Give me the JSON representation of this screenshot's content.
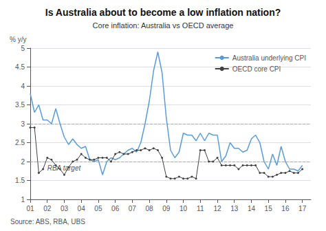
{
  "chart_data": {
    "type": "line",
    "title": "Is Australia about to become a low inflation nation?",
    "subtitle": "Core inflation: Australia vs OECD average",
    "y_label": "% y/y",
    "source": "Source: ABS, RBA, UBS",
    "annotations": [
      {
        "text": "RBA target",
        "x": 2002.0,
        "y": 1.83
      }
    ],
    "reference_lines": {
      "values": [
        2.0,
        3.0
      ],
      "color": "#aaaaaa",
      "line_style": "dashed"
    },
    "x": [
      2001,
      2001.25,
      2001.5,
      2001.75,
      2002,
      2002.25,
      2002.5,
      2002.75,
      2003,
      2003.25,
      2003.5,
      2003.75,
      2004,
      2004.25,
      2004.5,
      2004.75,
      2005,
      2005.25,
      2005.5,
      2005.75,
      2006,
      2006.25,
      2006.5,
      2006.75,
      2007,
      2007.25,
      2007.5,
      2007.75,
      2008,
      2008.25,
      2008.5,
      2008.75,
      2009,
      2009.25,
      2009.5,
      2009.75,
      2010,
      2010.25,
      2010.5,
      2010.75,
      2011,
      2011.25,
      2011.5,
      2011.75,
      2012,
      2012.25,
      2012.5,
      2012.75,
      2013,
      2013.25,
      2013.5,
      2013.75,
      2014,
      2014.25,
      2014.5,
      2014.75,
      2015,
      2015.25,
      2015.5,
      2015.75,
      2016,
      2016.25,
      2016.5,
      2016.75,
      2017
    ],
    "series": [
      {
        "name": "Australia underlying CPI",
        "color": "#5b9bd5",
        "marker": "none",
        "values": [
          3.8,
          3.3,
          3.5,
          3.1,
          3.1,
          3.0,
          3.4,
          3.0,
          2.65,
          2.45,
          2.6,
          2.45,
          2.35,
          2.4,
          2.05,
          2.0,
          2.05,
          1.65,
          2.0,
          2.1,
          2.05,
          2.1,
          2.2,
          2.3,
          2.35,
          2.25,
          2.5,
          3.0,
          3.6,
          4.4,
          4.9,
          4.35,
          3.15,
          2.3,
          2.1,
          2.25,
          2.75,
          2.7,
          2.7,
          2.55,
          2.75,
          2.55,
          2.75,
          2.7,
          2.7,
          2.0,
          2.15,
          2.5,
          2.35,
          2.35,
          2.25,
          2.3,
          2.6,
          2.7,
          2.5,
          2.0,
          1.8,
          2.2,
          1.9,
          2.4,
          2.0,
          1.8,
          1.8,
          1.75,
          1.9
        ]
      },
      {
        "name": "OECD core CPI",
        "color": "#404040",
        "marker": "circle",
        "values": [
          2.9,
          2.9,
          1.7,
          1.8,
          2.1,
          2.05,
          1.9,
          1.8,
          1.65,
          1.85,
          2.0,
          2.05,
          2.2,
          2.1,
          2.05,
          2.05,
          2.1,
          2.1,
          2.1,
          2.0,
          2.2,
          2.25,
          2.2,
          2.2,
          2.25,
          2.3,
          2.3,
          2.35,
          2.3,
          2.35,
          2.3,
          2.1,
          1.6,
          1.55,
          1.55,
          1.6,
          1.55,
          1.55,
          1.6,
          1.55,
          2.3,
          2.3,
          2.0,
          2.0,
          2.1,
          1.9,
          1.9,
          1.9,
          1.9,
          1.8,
          1.9,
          1.9,
          1.9,
          1.9,
          1.7,
          1.7,
          1.6,
          1.6,
          1.65,
          1.7,
          1.7,
          1.75,
          1.7,
          1.7,
          1.8
        ]
      }
    ],
    "xlim": [
      2001,
      2017.5
    ],
    "xticks": [
      {
        "value": 2001,
        "label": "01"
      },
      {
        "value": 2002,
        "label": "02"
      },
      {
        "value": 2003,
        "label": "03"
      },
      {
        "value": 2004,
        "label": "04"
      },
      {
        "value": 2005,
        "label": "05"
      },
      {
        "value": 2006,
        "label": "06"
      },
      {
        "value": 2007,
        "label": "07"
      },
      {
        "value": 2008,
        "label": "08"
      },
      {
        "value": 2009,
        "label": "09"
      },
      {
        "value": 2010,
        "label": "10"
      },
      {
        "value": 2011,
        "label": "11"
      },
      {
        "value": 2012,
        "label": "12"
      },
      {
        "value": 2013,
        "label": "13"
      },
      {
        "value": 2014,
        "label": "14"
      },
      {
        "value": 2015,
        "label": "15"
      },
      {
        "value": 2016,
        "label": "16"
      },
      {
        "value": 2017,
        "label": "17"
      }
    ],
    "ylim": [
      1.0,
      5.0
    ],
    "yticks": [
      1,
      1.5,
      2,
      2.5,
      3,
      3.5,
      4,
      4.5,
      5
    ],
    "grid": true,
    "legend": "upper right"
  }
}
